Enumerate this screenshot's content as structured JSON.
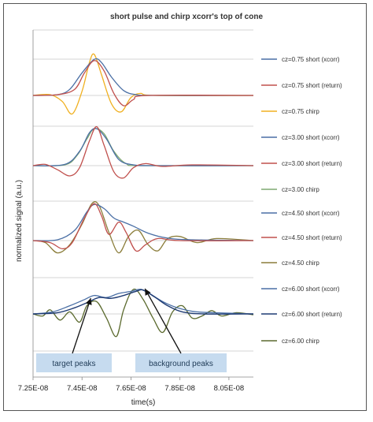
{
  "chart_data": {
    "type": "line",
    "title": "short pulse and chirp xcorr's top of cone",
    "xlabel": "time(s)",
    "ylabel": "normalized signal (a.u.)",
    "x_ticks": [
      "7.25E-08",
      "7.45E-08",
      "7.65E-08",
      "7.85E-08",
      "8.05E-08"
    ],
    "xlim": [
      7.25e-08,
      8.15e-08
    ],
    "grid": "horizontal",
    "legend_position": "right",
    "series": [
      {
        "name": "cz=0.75 short (xcorr)",
        "color": "#4a6fa5",
        "group": 0,
        "kind": "xcorr",
        "points": [
          [
            7.25e-08,
            0
          ],
          [
            7.35e-08,
            0.02
          ],
          [
            7.4e-08,
            0.15
          ],
          [
            7.45e-08,
            0.55
          ],
          [
            7.5e-08,
            0.88
          ],
          [
            7.53e-08,
            0.8
          ],
          [
            7.57e-08,
            0.45
          ],
          [
            7.62e-08,
            0.12
          ],
          [
            7.67e-08,
            0.02
          ],
          [
            7.75e-08,
            0
          ],
          [
            8.15e-08,
            0
          ]
        ]
      },
      {
        "name": "cz=0.75 short (return)",
        "color": "#c0504d",
        "group": 0,
        "kind": "return",
        "points": [
          [
            7.25e-08,
            0
          ],
          [
            7.35e-08,
            0.02
          ],
          [
            7.42e-08,
            0.15
          ],
          [
            7.46e-08,
            0.55
          ],
          [
            7.5e-08,
            0.85
          ],
          [
            7.54e-08,
            0.6
          ],
          [
            7.58e-08,
            0.05
          ],
          [
            7.62e-08,
            -0.25
          ],
          [
            7.66e-08,
            -0.1
          ],
          [
            7.72e-08,
            0
          ],
          [
            8.15e-08,
            0
          ]
        ]
      },
      {
        "name": "cz=0.75 chirp",
        "color": "#f0b020",
        "group": 0,
        "kind": "chirp",
        "points": [
          [
            7.25e-08,
            0
          ],
          [
            7.32e-08,
            0.02
          ],
          [
            7.37e-08,
            -0.15
          ],
          [
            7.41e-08,
            -0.45
          ],
          [
            7.45e-08,
            0.1
          ],
          [
            7.48e-08,
            0.8
          ],
          [
            7.5e-08,
            1.0
          ],
          [
            7.53e-08,
            0.5
          ],
          [
            7.57e-08,
            -0.2
          ],
          [
            7.61e-08,
            -0.4
          ],
          [
            7.65e-08,
            -0.05
          ],
          [
            7.69e-08,
            0.05
          ],
          [
            7.75e-08,
            0
          ],
          [
            8.15e-08,
            0
          ]
        ]
      },
      {
        "name": "cz=3.00 short (xcorr)",
        "color": "#4a6fa5",
        "group": 1,
        "kind": "xcorr",
        "points": [
          [
            7.25e-08,
            0
          ],
          [
            7.38e-08,
            0.03
          ],
          [
            7.44e-08,
            0.35
          ],
          [
            7.48e-08,
            0.8
          ],
          [
            7.51e-08,
            0.9
          ],
          [
            7.55e-08,
            0.65
          ],
          [
            7.6e-08,
            0.15
          ],
          [
            7.66e-08,
            0.02
          ],
          [
            7.75e-08,
            0
          ],
          [
            8.15e-08,
            0
          ]
        ]
      },
      {
        "name": "cz=3.00 short (return)",
        "color": "#c0504d",
        "group": 1,
        "kind": "return",
        "points": [
          [
            7.25e-08,
            0
          ],
          [
            7.3e-08,
            0.03
          ],
          [
            7.35e-08,
            -0.1
          ],
          [
            7.4e-08,
            -0.25
          ],
          [
            7.44e-08,
            -0.05
          ],
          [
            7.48e-08,
            0.6
          ],
          [
            7.51e-08,
            0.95
          ],
          [
            7.54e-08,
            0.5
          ],
          [
            7.58e-08,
            -0.15
          ],
          [
            7.62e-08,
            -0.3
          ],
          [
            7.66e-08,
            -0.05
          ],
          [
            7.71e-08,
            0.05
          ],
          [
            7.78e-08,
            -0.02
          ],
          [
            7.9e-08,
            0.02
          ],
          [
            8.15e-08,
            0
          ]
        ]
      },
      {
        "name": "cz=3.00 chirp",
        "color": "#7fa870",
        "group": 1,
        "kind": "chirp",
        "points": [
          [
            7.25e-08,
            0
          ],
          [
            7.38e-08,
            0.02
          ],
          [
            7.43e-08,
            0.25
          ],
          [
            7.47e-08,
            0.65
          ],
          [
            7.5e-08,
            0.9
          ],
          [
            7.54e-08,
            0.78
          ],
          [
            7.58e-08,
            0.35
          ],
          [
            7.63e-08,
            0.05
          ],
          [
            7.7e-08,
            0
          ],
          [
            8.15e-08,
            0
          ]
        ]
      },
      {
        "name": "cz=4.50 short (xcorr)",
        "color": "#4a6fa5",
        "group": 2,
        "kind": "xcorr",
        "points": [
          [
            7.25e-08,
            0
          ],
          [
            7.35e-08,
            0.02
          ],
          [
            7.42e-08,
            0.25
          ],
          [
            7.47e-08,
            0.7
          ],
          [
            7.5e-08,
            0.88
          ],
          [
            7.54e-08,
            0.78
          ],
          [
            7.58e-08,
            0.55
          ],
          [
            7.62e-08,
            0.45
          ],
          [
            7.66e-08,
            0.35
          ],
          [
            7.72e-08,
            0.18
          ],
          [
            7.8e-08,
            0.06
          ],
          [
            7.9e-08,
            0.02
          ],
          [
            8.15e-08,
            0
          ]
        ]
      },
      {
        "name": "cz=4.50 short (return)",
        "color": "#c0504d",
        "group": 2,
        "kind": "return",
        "points": [
          [
            7.25e-08,
            0
          ],
          [
            7.32e-08,
            -0.05
          ],
          [
            7.37e-08,
            -0.2
          ],
          [
            7.41e-08,
            -0.05
          ],
          [
            7.46e-08,
            0.55
          ],
          [
            7.5e-08,
            0.9
          ],
          [
            7.53e-08,
            0.6
          ],
          [
            7.56e-08,
            0.15
          ],
          [
            7.6e-08,
            0.45
          ],
          [
            7.63e-08,
            0.2
          ],
          [
            7.67e-08,
            -0.25
          ],
          [
            7.71e-08,
            -0.1
          ],
          [
            7.76e-08,
            0.05
          ],
          [
            7.85e-08,
            0
          ],
          [
            8.15e-08,
            0
          ]
        ]
      },
      {
        "name": "cz=4.50 chirp",
        "color": "#8b7d3a",
        "group": 2,
        "kind": "chirp",
        "points": [
          [
            7.25e-08,
            0
          ],
          [
            7.3e-08,
            -0.05
          ],
          [
            7.35e-08,
            -0.3
          ],
          [
            7.4e-08,
            -0.1
          ],
          [
            7.45e-08,
            0.4
          ],
          [
            7.49e-08,
            0.9
          ],
          [
            7.52e-08,
            0.85
          ],
          [
            7.56e-08,
            0.2
          ],
          [
            7.6e-08,
            -0.3
          ],
          [
            7.64e-08,
            0.1
          ],
          [
            7.68e-08,
            0.25
          ],
          [
            7.72e-08,
            -0.1
          ],
          [
            7.76e-08,
            -0.25
          ],
          [
            7.8e-08,
            0.05
          ],
          [
            7.85e-08,
            0.1
          ],
          [
            7.92e-08,
            -0.05
          ],
          [
            8e-08,
            0.05
          ],
          [
            8.15e-08,
            0
          ]
        ]
      },
      {
        "name": "cz=6.00 short (xcorr)",
        "color": "#4a6fa5",
        "group": 3,
        "kind": "xcorr",
        "points": [
          [
            7.25e-08,
            0
          ],
          [
            7.33e-08,
            0.05
          ],
          [
            7.4e-08,
            0.2
          ],
          [
            7.46e-08,
            0.35
          ],
          [
            7.5e-08,
            0.45
          ],
          [
            7.55e-08,
            0.4
          ],
          [
            7.6e-08,
            0.5
          ],
          [
            7.65e-08,
            0.55
          ],
          [
            7.69e-08,
            0.6
          ],
          [
            7.73e-08,
            0.48
          ],
          [
            7.78e-08,
            0.3
          ],
          [
            7.84e-08,
            0.15
          ],
          [
            7.92e-08,
            0.05
          ],
          [
            8.05e-08,
            0.02
          ],
          [
            8.15e-08,
            0
          ]
        ]
      },
      {
        "name": "cz=6.00 short (return)",
        "color": "#1f3b73",
        "group": 3,
        "kind": "return",
        "points": [
          [
            7.25e-08,
            0
          ],
          [
            7.35e-08,
            0.03
          ],
          [
            7.42e-08,
            0.15
          ],
          [
            7.48e-08,
            0.3
          ],
          [
            7.52e-08,
            0.4
          ],
          [
            7.57e-08,
            0.38
          ],
          [
            7.62e-08,
            0.45
          ],
          [
            7.67e-08,
            0.55
          ],
          [
            7.7e-08,
            0.58
          ],
          [
            7.75e-08,
            0.4
          ],
          [
            7.8e-08,
            0.2
          ],
          [
            7.86e-08,
            0.05
          ],
          [
            7.95e-08,
            0
          ],
          [
            8.15e-08,
            0
          ]
        ]
      },
      {
        "name": "cz=6.00 chirp",
        "color": "#5b6a2e",
        "group": 3,
        "kind": "chirp",
        "points": [
          [
            7.25e-08,
            0
          ],
          [
            7.29e-08,
            -0.05
          ],
          [
            7.32e-08,
            0.1
          ],
          [
            7.36e-08,
            -0.15
          ],
          [
            7.4e-08,
            0.05
          ],
          [
            7.44e-08,
            -0.2
          ],
          [
            7.47e-08,
            0.2
          ],
          [
            7.51e-08,
            0.3
          ],
          [
            7.55e-08,
            -0.1
          ],
          [
            7.59e-08,
            -0.55
          ],
          [
            7.62e-08,
            0.1
          ],
          [
            7.66e-08,
            0.6
          ],
          [
            7.7e-08,
            0.35
          ],
          [
            7.74e-08,
            -0.1
          ],
          [
            7.78e-08,
            -0.45
          ],
          [
            7.82e-08,
            0.05
          ],
          [
            7.86e-08,
            0.2
          ],
          [
            7.9e-08,
            -0.1
          ],
          [
            7.94e-08,
            -0.05
          ],
          [
            7.98e-08,
            0.08
          ],
          [
            8.02e-08,
            -0.05
          ],
          [
            8.08e-08,
            0.03
          ],
          [
            8.15e-08,
            -0.02
          ]
        ]
      }
    ],
    "annotations": [
      {
        "text": "target peaks",
        "points_to": 7.55e-08
      },
      {
        "text": "background peaks",
        "points_to": 7.72e-08
      }
    ]
  }
}
